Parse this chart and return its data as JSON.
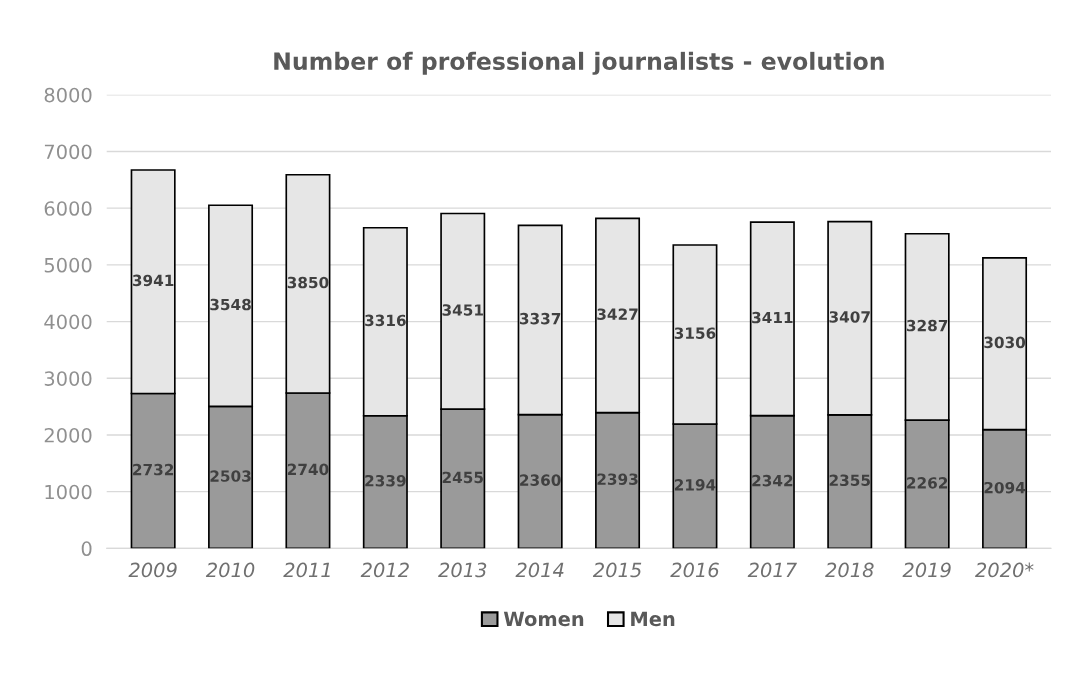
{
  "chart_data": {
    "type": "bar",
    "title": "Number of professional journalists - evolution",
    "categories": [
      "2009",
      "2010",
      "2011",
      "2012",
      "2013",
      "2014",
      "2015",
      "2016",
      "2017",
      "2018",
      "2019",
      "2020*"
    ],
    "stacked": true,
    "series": [
      {
        "name": "Women",
        "color": "#9a9a9a",
        "values": [
          2732,
          2503,
          2740,
          2339,
          2455,
          2360,
          2393,
          2194,
          2342,
          2355,
          2262,
          2094
        ]
      },
      {
        "name": "Men",
        "color": "#e6e6e6",
        "values": [
          3941,
          3548,
          3850,
          3316,
          3451,
          3337,
          3427,
          3156,
          3411,
          3407,
          3287,
          3030
        ]
      }
    ],
    "ylim": [
      0,
      8000
    ],
    "yticks": [
      0,
      1000,
      2000,
      3000,
      4000,
      5000,
      6000,
      7000,
      8000
    ],
    "grid": "y",
    "legend": "bottom",
    "data_labels": true
  }
}
